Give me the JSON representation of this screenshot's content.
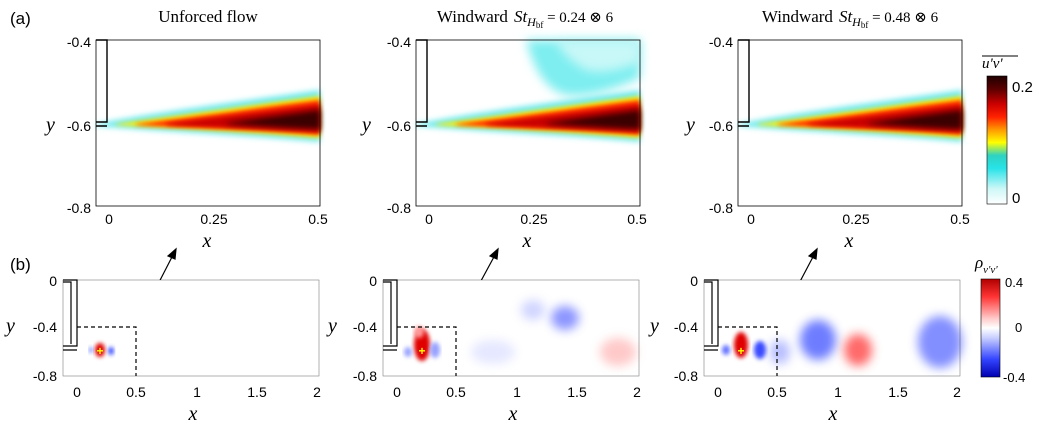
{
  "labels": {
    "row_a": "(a)",
    "row_b": "(b)"
  },
  "titles": [
    {
      "prefix": "Unforced flow",
      "math": ""
    },
    {
      "prefix": "Windward",
      "math": "St",
      "sub": "H",
      "subsub": "bf",
      "suffix": " = 0.24 ⊗ 6"
    },
    {
      "prefix": "Windward",
      "math": "St",
      "sub": "H",
      "subsub": "bf",
      "suffix": " = 0.48 ⊗ 6"
    }
  ],
  "row_a": {
    "xlabel": "x",
    "ylabel": "y",
    "xticks": [
      "0",
      "0.25",
      "0.5"
    ],
    "yticks": [
      "-0.4",
      "-0.6",
      "-0.8"
    ],
    "colorbar": {
      "label": "u'v'",
      "ticks": [
        "0.2",
        "0"
      ],
      "stops": [
        "#ffffff",
        "#cdf7f7",
        "#27e3e8",
        "#2fd2c0",
        "#ffff00",
        "#ff9900",
        "#ff2200",
        "#cc0000",
        "#5a0000",
        "#1e0000"
      ]
    }
  },
  "row_b": {
    "xlabel": "x",
    "ylabel": "y",
    "xticks": [
      "0",
      "0.5",
      "1",
      "1.5",
      "2"
    ],
    "yticks": [
      "0",
      "-0.4",
      "-0.8"
    ],
    "colorbar": {
      "label_main": "ρ",
      "label_sub": "v'v'",
      "ticks": [
        "0.4",
        "0",
        "-0.4"
      ],
      "stops": [
        "#0000b0",
        "#3344ff",
        "#c8cfff",
        "#ffffff",
        "#ffc8c8",
        "#ff3333",
        "#b00000"
      ]
    }
  }
}
